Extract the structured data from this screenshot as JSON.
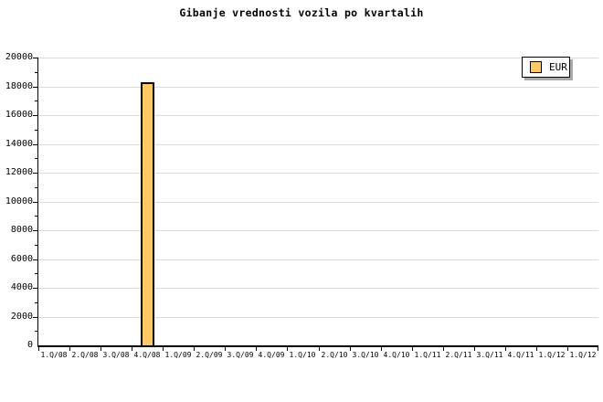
{
  "title": "Gibanje vrednosti vozila po kvartalih",
  "legend": {
    "items": [
      {
        "label": "EUR",
        "swatch_color": "#FDC866"
      }
    ]
  },
  "colors": {
    "background": "#FFFFFF",
    "bar_fill": "#FDC866",
    "bar_border": "#000000",
    "gridline": "#DCDCDC",
    "axis": "#000000",
    "legend_shadow": "#A9A9A9"
  },
  "chart_data": {
    "type": "bar",
    "title": "Gibanje vrednosti vozila po kvartalih",
    "categories": [
      "1.Q/08",
      "2.Q/08",
      "3.Q/08",
      "4.Q/08",
      "1.Q/09",
      "2.Q/09",
      "3.Q/09",
      "4.Q/09",
      "1.Q/10",
      "2.Q/10",
      "3.Q/10",
      "4.Q/10",
      "1.Q/11",
      "2.Q/11",
      "3.Q/11",
      "4.Q/11",
      "1.Q/12",
      "1.Q/12"
    ],
    "series": [
      {
        "name": "EUR",
        "color": "#FDC866",
        "values": [
          null,
          null,
          null,
          18300,
          null,
          null,
          null,
          null,
          null,
          null,
          null,
          null,
          null,
          null,
          null,
          null,
          null,
          null
        ]
      }
    ],
    "xlabel": "",
    "ylabel": "",
    "ylim": [
      0,
      20000
    ],
    "ytick_step": 2000,
    "y_minor_tick_step": 1000,
    "grid": true,
    "legend_position": "top-right"
  }
}
